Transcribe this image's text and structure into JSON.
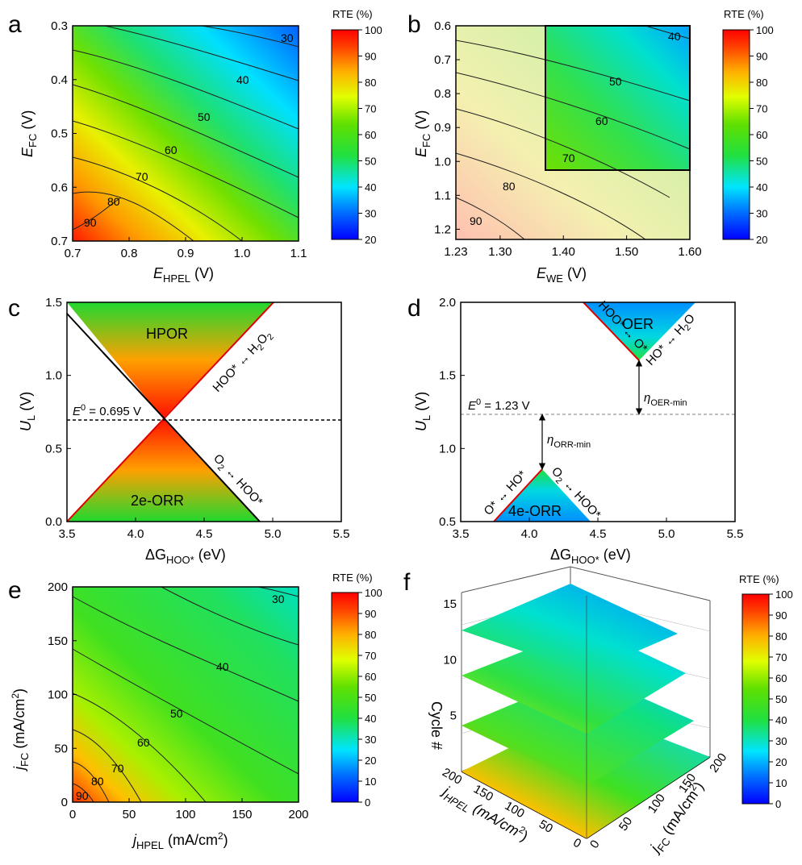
{
  "colors": {
    "scale": [
      "#0000ff",
      "#0070ff",
      "#00e5ff",
      "#20e040",
      "#60e000",
      "#e0ff00",
      "#ffb000",
      "#ff4000",
      "#ff0000"
    ]
  },
  "chart_data": [
    {
      "panel": "a",
      "type": "heatmap",
      "xlabel": "E_HPEL (V)",
      "ylabel": "E_FC (V)",
      "xlim": [
        0.7,
        1.1
      ],
      "ylim": [
        0.3,
        0.7
      ],
      "y_reversed": true,
      "xticks": [
        "0.7",
        "0.8",
        "0.9",
        "1.0",
        "1.1"
      ],
      "yticks": [
        "0.3",
        "0.4",
        "0.5",
        "0.6",
        "0.7"
      ],
      "contour_labels": [
        "30",
        "40",
        "50",
        "60",
        "70",
        "80",
        "90"
      ],
      "colorbar": {
        "title": "RTE (%)",
        "range": [
          20,
          100
        ],
        "ticks": [
          "100",
          "90",
          "80",
          "70",
          "60",
          "50",
          "40",
          "30",
          "20"
        ]
      }
    },
    {
      "panel": "b",
      "type": "heatmap",
      "xlabel": "E_WE (V)",
      "ylabel": "E_FC (V)",
      "xlim": [
        1.23,
        1.6
      ],
      "ylim": [
        0.6,
        1.23
      ],
      "y_reversed": true,
      "xticks": [
        "1.23",
        "1.30",
        "1.40",
        "1.50",
        "1.60"
      ],
      "yticks": [
        "0.6",
        "0.7",
        "0.8",
        "0.9",
        "1.0",
        "1.1",
        "1.2"
      ],
      "contour_labels": [
        "40",
        "50",
        "60",
        "70",
        "80",
        "90"
      ],
      "highlight_box": {
        "x": [
          1.37,
          1.6
        ],
        "y": [
          0.6,
          1.02
        ]
      },
      "colorbar": {
        "title": "RTE (%)",
        "range": [
          20,
          100
        ],
        "ticks": [
          "100",
          "90",
          "80",
          "70",
          "60",
          "50",
          "40",
          "30",
          "20"
        ]
      }
    },
    {
      "panel": "c",
      "type": "area",
      "xlabel": "ΔG_HOO* (eV)",
      "ylabel": "U_L (V)",
      "xlim": [
        3.5,
        5.5
      ],
      "ylim": [
        0.0,
        1.5
      ],
      "xticks": [
        "3.5",
        "4.0",
        "4.5",
        "5.0",
        "5.5"
      ],
      "yticks": [
        "0.0",
        "0.5",
        "1.0",
        "1.5"
      ],
      "equilibrium": {
        "value": 0.695,
        "label": "E⁰ = 0.695 V"
      },
      "apex": {
        "x": 4.22,
        "y": 0.695
      },
      "regions": [
        "HPOR",
        "2e-ORR"
      ],
      "line_labels": [
        "HOO* ↔ H₂O₂",
        "O₂ ↔ HOO*"
      ],
      "lines": [
        {
          "name": "HOO* ↔ H₂O₂",
          "points": [
            [
              3.5,
              0.0
            ],
            [
              5.0,
              1.5
            ]
          ]
        },
        {
          "name": "O₂ ↔ HOO*",
          "points": [
            [
              3.5,
              1.42
            ],
            [
              4.9,
              0.0
            ]
          ]
        }
      ]
    },
    {
      "panel": "d",
      "type": "area",
      "xlabel": "ΔG_HOO* (eV)",
      "ylabel": "U_L (V)",
      "xlim": [
        3.5,
        5.5
      ],
      "ylim": [
        0.5,
        2.0
      ],
      "xticks": [
        "3.5",
        "4.0",
        "4.5",
        "5.0",
        "5.5"
      ],
      "yticks": [
        "0.5",
        "1.0",
        "1.5",
        "2.0"
      ],
      "equilibrium": {
        "value": 1.23,
        "label": "E⁰ = 1.23 V"
      },
      "regions": [
        "OER",
        "4e-ORR"
      ],
      "line_labels": [
        "HOO* ↔ O*",
        "HO* ↔ H₂O",
        "O* ↔ HO*",
        "O₂ ↔ HOO*"
      ],
      "overpotentials": [
        {
          "name": "η_ORR-min",
          "x": 4.05,
          "from": 1.23,
          "to": 0.86
        },
        {
          "name": "η_OER-min",
          "x": 4.8,
          "from": 1.23,
          "to": 1.6
        }
      ],
      "triangles": [
        {
          "region": "OER",
          "points": [
            [
              4.38,
              2.0
            ],
            [
              5.2,
              2.0
            ],
            [
              4.8,
              1.6
            ]
          ]
        },
        {
          "region": "4e-ORR",
          "points": [
            [
              3.7,
              0.5
            ],
            [
              4.42,
              0.5
            ],
            [
              4.05,
              0.86
            ]
          ]
        }
      ]
    },
    {
      "panel": "e",
      "type": "heatmap",
      "xlabel": "j_HPEL (mA/cm²)",
      "ylabel": "j_FC (mA/cm²)",
      "xlim": [
        0,
        200
      ],
      "ylim": [
        0,
        200
      ],
      "xticks": [
        "0",
        "50",
        "100",
        "150",
        "200"
      ],
      "yticks": [
        "0",
        "50",
        "100",
        "150",
        "200"
      ],
      "contour_labels": [
        "30",
        "40",
        "50",
        "60",
        "70",
        "80",
        "90"
      ],
      "colorbar": {
        "title": "RTE (%)",
        "range": [
          0,
          100
        ],
        "ticks": [
          "100",
          "90",
          "80",
          "70",
          "60",
          "50",
          "40",
          "30",
          "20",
          "10",
          "0"
        ]
      }
    },
    {
      "panel": "f",
      "type": "heatmap",
      "projection": "3d",
      "xlabel": "j_HPEL (mA/cm²)",
      "ylabel": "j_FC (mA/cm²)",
      "zlabel": "Cycle #",
      "x_ticks": [
        "0",
        "50",
        "100",
        "150",
        "200"
      ],
      "y_ticks": [
        "0",
        "50",
        "100",
        "150",
        "200"
      ],
      "z_ticks": [
        "5",
        "10",
        "15"
      ],
      "layer_count": 4,
      "colorbar": {
        "title": "RTE (%)",
        "range": [
          0,
          100
        ],
        "ticks": [
          "100",
          "90",
          "80",
          "70",
          "60",
          "50",
          "40",
          "30",
          "20",
          "10",
          "0"
        ]
      }
    }
  ],
  "text": {
    "panel_letters": [
      "a",
      "b",
      "c",
      "d",
      "e",
      "f"
    ],
    "cb_title": "RTE (%)",
    "axes": {
      "E": "E",
      "FC": "FC",
      "HPEL": "HPEL",
      "WE": "WE",
      "unitV": " (V)",
      "U": "U",
      "L": "L",
      "dG": "ΔG",
      "HOO": "HOO*",
      "unitEV": " (eV)",
      "j": "j",
      "unitJ": " (mA/cm",
      "sq": "2",
      "close": ")",
      "cycle": "Cycle #",
      "jHPEL3d": "j",
      "jFC3d": "j"
    },
    "c": {
      "hpor": "HPOR",
      "orr": "2e-ORR",
      "e0": "E",
      "e0sup": "0",
      "e0val": " = 0.695 V",
      "line1": "HOO* ↔ H",
      "line1b": "O",
      "sub2": "2",
      "line2a": "O",
      "line2b": " ↔ HOO*"
    },
    "d": {
      "oer": "OER",
      "orr": "4e-ORR",
      "e0": "E",
      "e0sup": "0",
      "e0val": " = 1.23 V",
      "eta": "η",
      "orrmin": "ORR-min",
      "oermin": "OER-min",
      "l1": "HOO* ↔ O*",
      "l2": "HO* ↔ H",
      "l2b": "O",
      "sub2": "2",
      "l3": "O* ↔ HO*",
      "l4a": "O",
      "l4b": " ↔ HOO*"
    }
  }
}
